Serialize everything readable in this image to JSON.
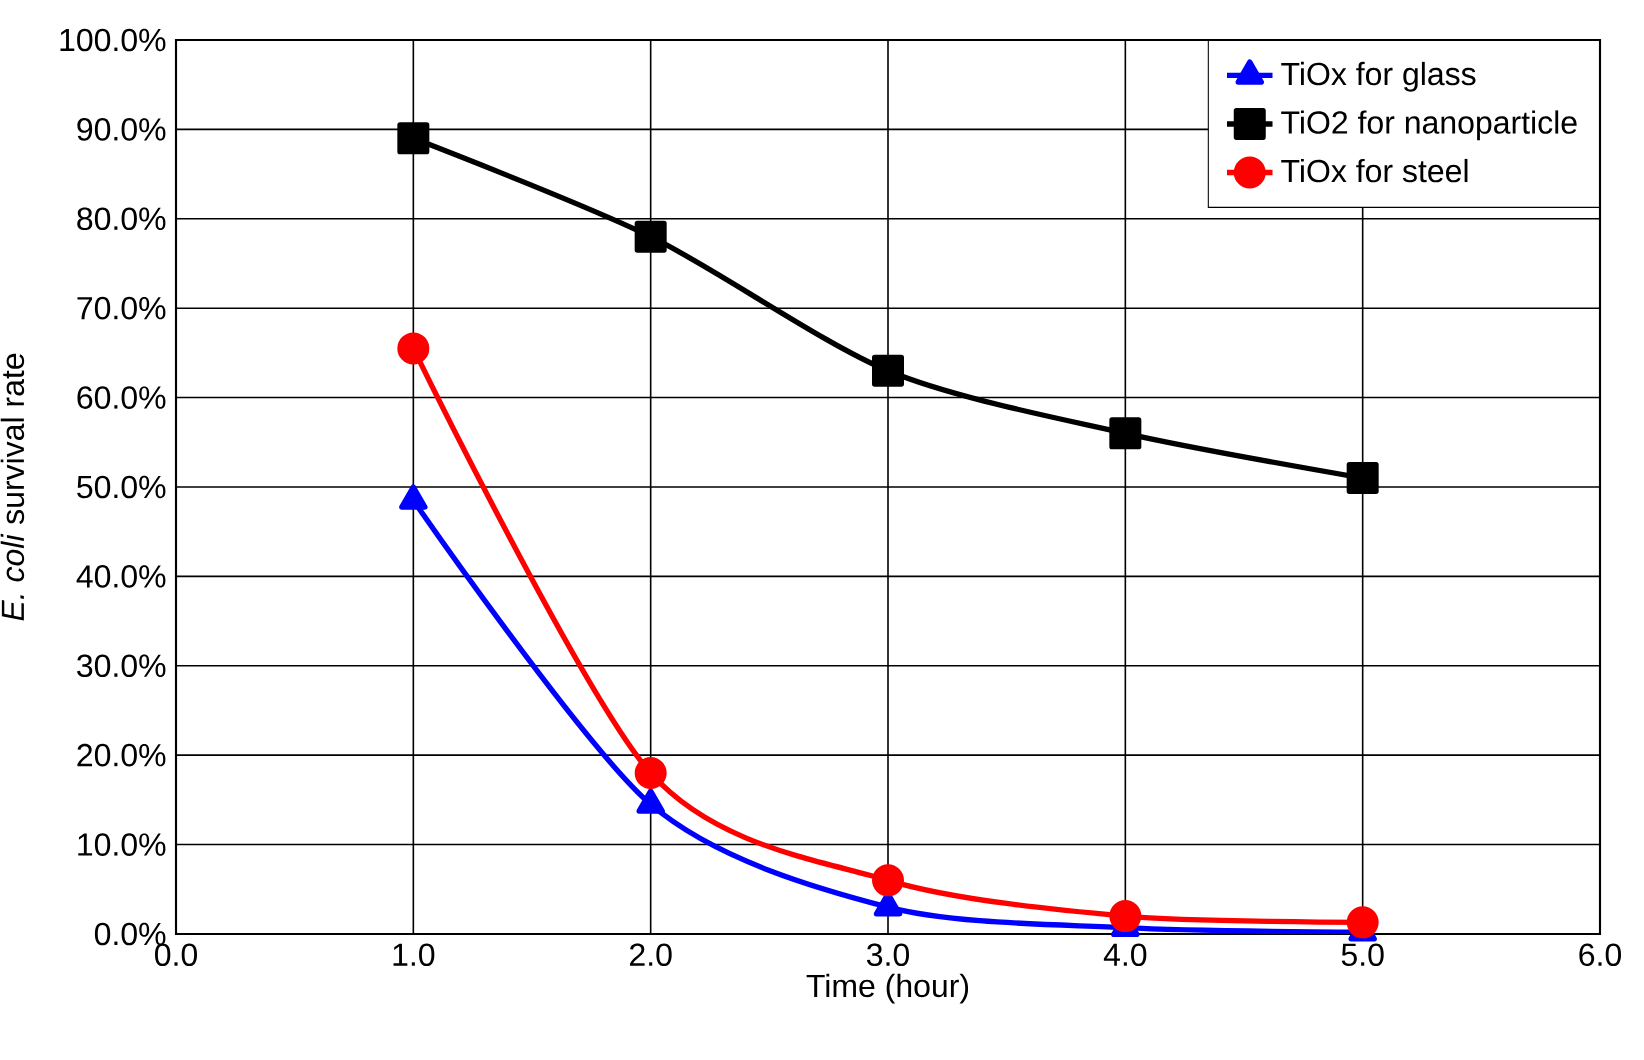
{
  "chart_data": {
    "type": "line",
    "xlabel": "Time (hour)",
    "ylabel": "*E. coli* survival rate",
    "x": [
      1,
      2,
      3,
      4,
      5
    ],
    "series": [
      {
        "name": "TiOx for glass",
        "color": "#0000ff",
        "marker": "triangle",
        "values": [
          48.5,
          14.5,
          3,
          0.7,
          0.2
        ]
      },
      {
        "name": "TiO2 for nanoparticle",
        "color": "#000000",
        "marker": "square",
        "values": [
          89,
          78,
          63,
          56,
          51
        ]
      },
      {
        "name": "TiOx for steel",
        "color": "#ff0000",
        "marker": "circle",
        "values": [
          65.5,
          18,
          6,
          2,
          1.3
        ]
      }
    ],
    "xlim": [
      0,
      6
    ],
    "xticks": [
      {
        "value": 0,
        "label": "0.0"
      },
      {
        "value": 1,
        "label": "1.0"
      },
      {
        "value": 2,
        "label": "2.0"
      },
      {
        "value": 3,
        "label": "3.0"
      },
      {
        "value": 4,
        "label": "4.0"
      },
      {
        "value": 5,
        "label": "5.0"
      },
      {
        "value": 6,
        "label": "6.0"
      }
    ],
    "ylim": [
      0,
      100
    ],
    "yticks": [
      {
        "value": 0,
        "label": "0.0%"
      },
      {
        "value": 10,
        "label": "10.0%"
      },
      {
        "value": 20,
        "label": "20.0%"
      },
      {
        "value": 30,
        "label": "30.0%"
      },
      {
        "value": 40,
        "label": "40.0%"
      },
      {
        "value": 50,
        "label": "50.0%"
      },
      {
        "value": 60,
        "label": "60.0%"
      },
      {
        "value": 70,
        "label": "70.0%"
      },
      {
        "value": 80,
        "label": "80.0%"
      },
      {
        "value": 90,
        "label": "90.0%"
      },
      {
        "value": 100,
        "label": "100.0%"
      }
    ],
    "grid": true,
    "legend": "top right",
    "line_style": "solid"
  }
}
